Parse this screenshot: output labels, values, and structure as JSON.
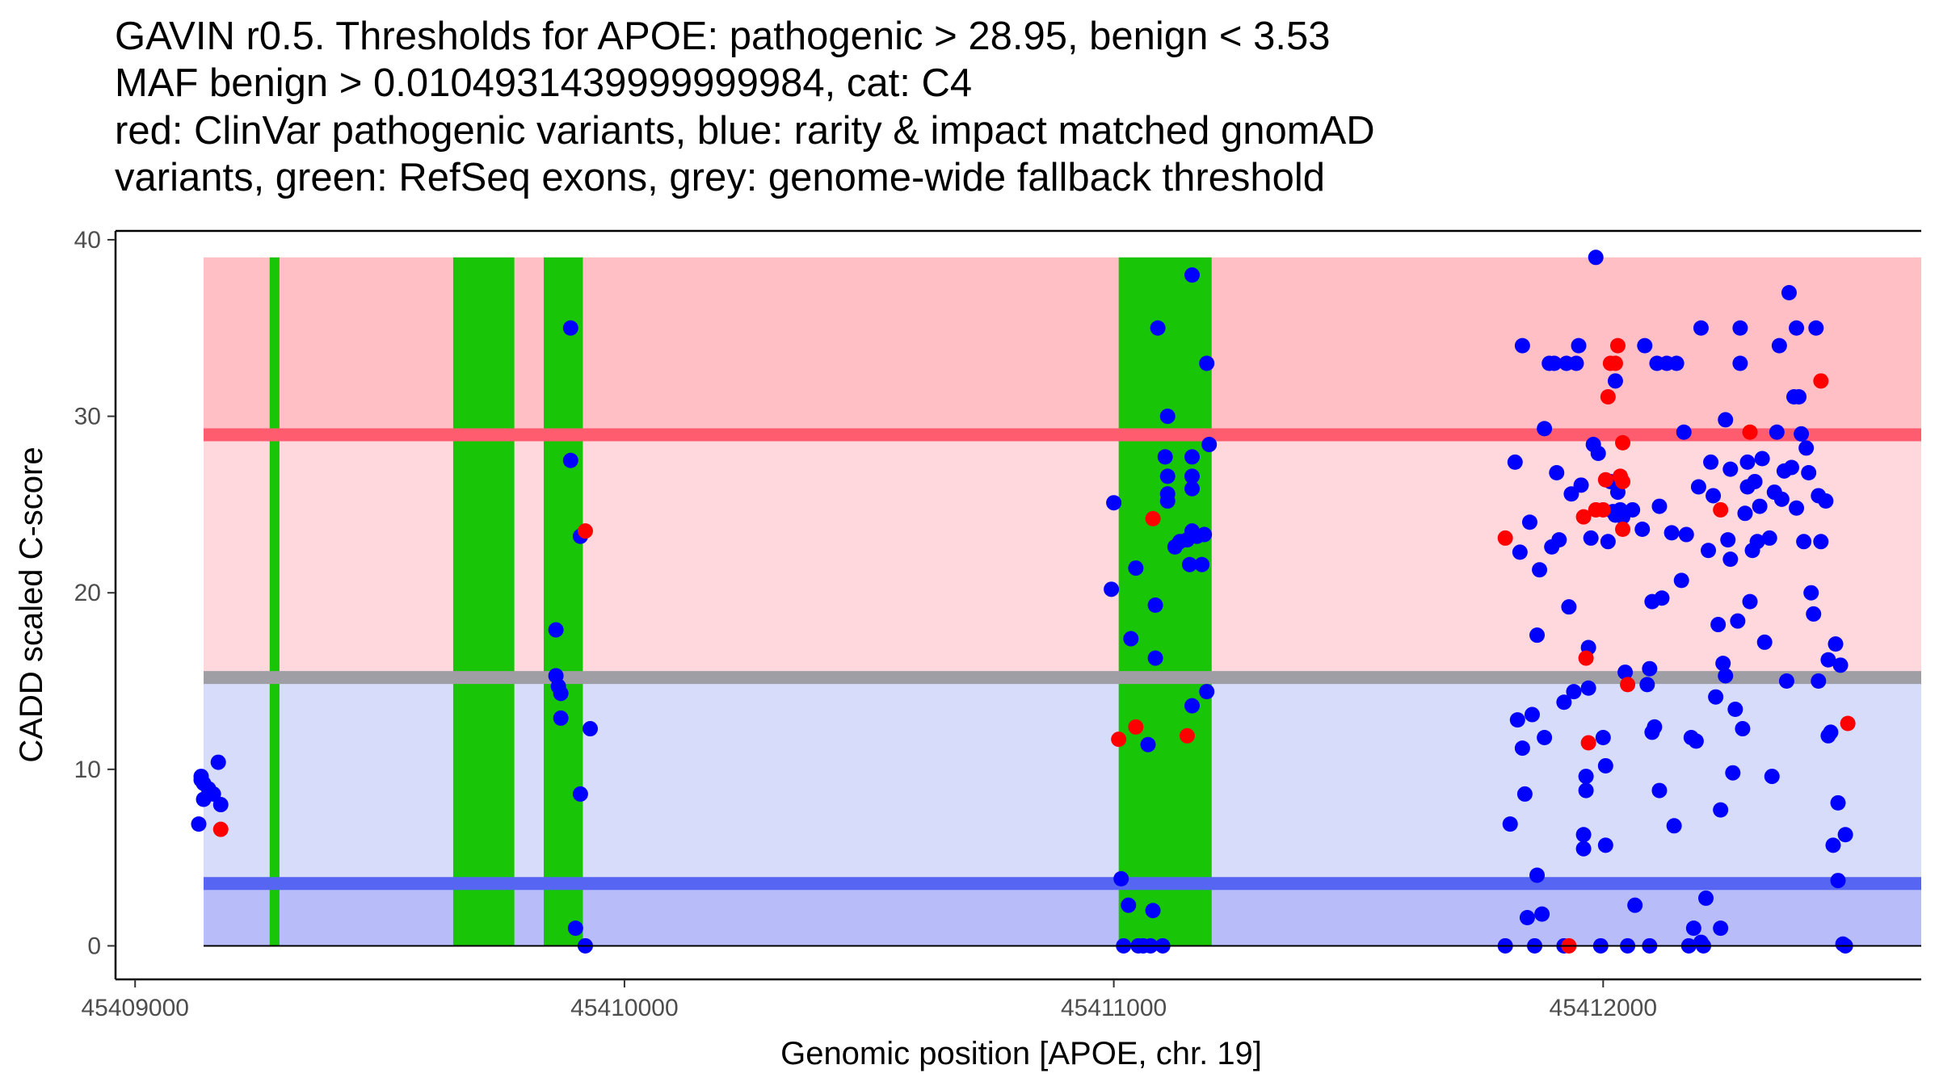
{
  "chart_data": {
    "type": "scatter",
    "title_lines": [
      "GAVIN r0.5. Thresholds for APOE: pathogenic > 28.95, benign < 3.53",
      "MAF benign > 0.0104931439999999984, cat: C4",
      "red: ClinVar pathogenic variants, blue: rarity & impact matched gnomAD",
      "variants, green: RefSeq exons, grey: genome-wide fallback threshold"
    ],
    "xlabel": "Genomic position [APOE, chr. 19]",
    "ylabel": "CADD scaled C-score",
    "xlim": [
      45408960,
      45412650
    ],
    "ylim": [
      -1.9,
      40.5
    ],
    "x_ticks": [
      45409000,
      45410000,
      45411000,
      45412000
    ],
    "x_tick_labels": [
      "45409000",
      "45410000",
      "45411000",
      "45412000"
    ],
    "y_ticks": [
      0,
      10,
      20,
      30,
      40
    ],
    "y_tick_labels": [
      "0",
      "10",
      "20",
      "30",
      "40"
    ],
    "colors": {
      "pathogenic_region": "#ffbfc5",
      "vus_region": "#ffd8dd",
      "benign_region": "#d8dcfb",
      "strong_benign_region": "#b8bdfa",
      "pathogenic_line": "#ff5c6f",
      "benign_line": "#5666f2",
      "fallback_line": "#9e9ea4",
      "exon": "#19c507",
      "pathogenic_point": "#ff0000",
      "gnomad_point": "#0000ff"
    },
    "regions": [
      {
        "name": "pathogenic",
        "y_from": 28.95,
        "y_to": 39
      },
      {
        "name": "vus",
        "y_from": 15.2,
        "y_to": 28.95
      },
      {
        "name": "benign",
        "y_from": 3.53,
        "y_to": 15.2
      },
      {
        "name": "strong-benign",
        "y_from": 0,
        "y_to": 3.53
      }
    ],
    "thresholds": {
      "pathogenic": 28.95,
      "benign": 3.53,
      "fallback": 15.2
    },
    "exons": [
      {
        "start": 45409275,
        "end": 45409295
      },
      {
        "start": 45409650,
        "end": 45409775
      },
      {
        "start": 45409835,
        "end": 45409915
      },
      {
        "start": 45411010,
        "end": 45411200
      }
    ],
    "exon_y_range": [
      0,
      39
    ],
    "clinvar_pathogenic": [
      {
        "x": 45409175,
        "y": 6.6
      },
      {
        "x": 45409920,
        "y": 23.5
      },
      {
        "x": 45411010,
        "y": 11.7
      },
      {
        "x": 45411045,
        "y": 12.4
      },
      {
        "x": 45411080,
        "y": 24.2
      },
      {
        "x": 45411150,
        "y": 11.9
      },
      {
        "x": 45411800,
        "y": 23.1
      },
      {
        "x": 45411930,
        "y": 0.0
      },
      {
        "x": 45411960,
        "y": 24.3
      },
      {
        "x": 45411965,
        "y": 16.3
      },
      {
        "x": 45411970,
        "y": 11.5
      },
      {
        "x": 45411985,
        "y": 24.7
      },
      {
        "x": 45412000,
        "y": 24.7
      },
      {
        "x": 45412005,
        "y": 26.4
      },
      {
        "x": 45412010,
        "y": 31.1
      },
      {
        "x": 45412015,
        "y": 33.0
      },
      {
        "x": 45412025,
        "y": 33.0
      },
      {
        "x": 45412030,
        "y": 34.0
      },
      {
        "x": 45412035,
        "y": 26.6
      },
      {
        "x": 45412040,
        "y": 26.3
      },
      {
        "x": 45412040,
        "y": 28.5
      },
      {
        "x": 45412040,
        "y": 23.6
      },
      {
        "x": 45412050,
        "y": 14.8
      },
      {
        "x": 45412240,
        "y": 24.7
      },
      {
        "x": 45412300,
        "y": 29.1
      },
      {
        "x": 45412445,
        "y": 32.0
      },
      {
        "x": 45412500,
        "y": 12.6
      }
    ],
    "gnomad_matched": [
      {
        "x": 45409130,
        "y": 6.9
      },
      {
        "x": 45409135,
        "y": 9.6
      },
      {
        "x": 45409140,
        "y": 9.2
      },
      {
        "x": 45409140,
        "y": 8.3
      },
      {
        "x": 45409150,
        "y": 8.9
      },
      {
        "x": 45409160,
        "y": 8.6
      },
      {
        "x": 45409170,
        "y": 10.4
      },
      {
        "x": 45409175,
        "y": 8.0
      },
      {
        "x": 45409135,
        "y": 9.4
      },
      {
        "x": 45409860,
        "y": 17.9
      },
      {
        "x": 45409860,
        "y": 15.3
      },
      {
        "x": 45409865,
        "y": 14.7
      },
      {
        "x": 45409870,
        "y": 14.3
      },
      {
        "x": 45409870,
        "y": 12.9
      },
      {
        "x": 45409890,
        "y": 35.0
      },
      {
        "x": 45409890,
        "y": 27.5
      },
      {
        "x": 45409900,
        "y": 1.0
      },
      {
        "x": 45409910,
        "y": 23.2
      },
      {
        "x": 45409910,
        "y": 8.6
      },
      {
        "x": 45409920,
        "y": 0.0
      },
      {
        "x": 45409930,
        "y": 12.3
      },
      {
        "x": 45411000,
        "y": 25.1
      },
      {
        "x": 45410995,
        "y": 20.2
      },
      {
        "x": 45411015,
        "y": 3.8
      },
      {
        "x": 45411020,
        "y": 0.0
      },
      {
        "x": 45411030,
        "y": 2.3
      },
      {
        "x": 45411035,
        "y": 17.4
      },
      {
        "x": 45411045,
        "y": 21.4
      },
      {
        "x": 45411050,
        "y": 0.0
      },
      {
        "x": 45411060,
        "y": 0.0
      },
      {
        "x": 45411070,
        "y": 11.4
      },
      {
        "x": 45411075,
        "y": 0.0
      },
      {
        "x": 45411080,
        "y": 2.0
      },
      {
        "x": 45411085,
        "y": 16.3
      },
      {
        "x": 45411085,
        "y": 19.3
      },
      {
        "x": 45411090,
        "y": 35.0
      },
      {
        "x": 45411100,
        "y": 0.0
      },
      {
        "x": 45411105,
        "y": 27.7
      },
      {
        "x": 45411110,
        "y": 30.0
      },
      {
        "x": 45411110,
        "y": 26.6
      },
      {
        "x": 45411110,
        "y": 25.6
      },
      {
        "x": 45411110,
        "y": 25.2
      },
      {
        "x": 45411125,
        "y": 22.6
      },
      {
        "x": 45411135,
        "y": 22.9
      },
      {
        "x": 45411150,
        "y": 23.0
      },
      {
        "x": 45411155,
        "y": 21.6
      },
      {
        "x": 45411160,
        "y": 23.5
      },
      {
        "x": 45411160,
        "y": 38.0
      },
      {
        "x": 45411160,
        "y": 27.7
      },
      {
        "x": 45411160,
        "y": 26.6
      },
      {
        "x": 45411160,
        "y": 25.9
      },
      {
        "x": 45411170,
        "y": 23.2
      },
      {
        "x": 45411180,
        "y": 21.6
      },
      {
        "x": 45411185,
        "y": 23.3
      },
      {
        "x": 45411160,
        "y": 13.6
      },
      {
        "x": 45411190,
        "y": 14.4
      },
      {
        "x": 45411190,
        "y": 33.0
      },
      {
        "x": 45411195,
        "y": 28.4
      },
      {
        "x": 45411800,
        "y": 0.0
      },
      {
        "x": 45411810,
        "y": 6.9
      },
      {
        "x": 45411820,
        "y": 27.4
      },
      {
        "x": 45411825,
        "y": 12.8
      },
      {
        "x": 45411830,
        "y": 22.3
      },
      {
        "x": 45411835,
        "y": 34.0
      },
      {
        "x": 45411835,
        "y": 11.2
      },
      {
        "x": 45411840,
        "y": 8.6
      },
      {
        "x": 45411845,
        "y": 1.6
      },
      {
        "x": 45411850,
        "y": 24.0
      },
      {
        "x": 45411855,
        "y": 13.1
      },
      {
        "x": 45411860,
        "y": 0.0
      },
      {
        "x": 45411865,
        "y": 4.0
      },
      {
        "x": 45411865,
        "y": 17.6
      },
      {
        "x": 45411870,
        "y": 21.3
      },
      {
        "x": 45411875,
        "y": 1.8
      },
      {
        "x": 45411880,
        "y": 11.8
      },
      {
        "x": 45411880,
        "y": 29.3
      },
      {
        "x": 45411890,
        "y": 33.0
      },
      {
        "x": 45411895,
        "y": 22.6
      },
      {
        "x": 45411900,
        "y": 33.0
      },
      {
        "x": 45411905,
        "y": 26.8
      },
      {
        "x": 45411910,
        "y": 23.0
      },
      {
        "x": 45411920,
        "y": 13.8
      },
      {
        "x": 45411920,
        "y": 0.0
      },
      {
        "x": 45411925,
        "y": 33.0
      },
      {
        "x": 45411930,
        "y": 19.2
      },
      {
        "x": 45411935,
        "y": 25.6
      },
      {
        "x": 45411940,
        "y": 14.4
      },
      {
        "x": 45411945,
        "y": 33.0
      },
      {
        "x": 45411950,
        "y": 34.0
      },
      {
        "x": 45411955,
        "y": 26.1
      },
      {
        "x": 45411960,
        "y": 5.5
      },
      {
        "x": 45411960,
        "y": 6.3
      },
      {
        "x": 45411965,
        "y": 9.6
      },
      {
        "x": 45411965,
        "y": 8.8
      },
      {
        "x": 45411970,
        "y": 14.6
      },
      {
        "x": 45411970,
        "y": 16.9
      },
      {
        "x": 45411975,
        "y": 23.1
      },
      {
        "x": 45411980,
        "y": 28.4
      },
      {
        "x": 45411985,
        "y": 39.0
      },
      {
        "x": 45411990,
        "y": 27.9
      },
      {
        "x": 45411995,
        "y": 0.0
      },
      {
        "x": 45412000,
        "y": 11.8
      },
      {
        "x": 45412005,
        "y": 10.2
      },
      {
        "x": 45412005,
        "y": 5.7
      },
      {
        "x": 45412010,
        "y": 22.9
      },
      {
        "x": 45412015,
        "y": 26.3
      },
      {
        "x": 45412020,
        "y": 24.6
      },
      {
        "x": 45412025,
        "y": 32.0
      },
      {
        "x": 45412025,
        "y": 24.4
      },
      {
        "x": 45412030,
        "y": 25.7
      },
      {
        "x": 45412035,
        "y": 24.7
      },
      {
        "x": 45412040,
        "y": 24.3
      },
      {
        "x": 45412045,
        "y": 15.5
      },
      {
        "x": 45412050,
        "y": 0.0
      },
      {
        "x": 45412060,
        "y": 24.7
      },
      {
        "x": 45412065,
        "y": 2.3
      },
      {
        "x": 45412080,
        "y": 23.6
      },
      {
        "x": 45412085,
        "y": 34.0
      },
      {
        "x": 45412090,
        "y": 14.8
      },
      {
        "x": 45412095,
        "y": 15.7
      },
      {
        "x": 45412095,
        "y": 0.0
      },
      {
        "x": 45412100,
        "y": 12.1
      },
      {
        "x": 45412100,
        "y": 19.5
      },
      {
        "x": 45412105,
        "y": 12.4
      },
      {
        "x": 45412110,
        "y": 33.0
      },
      {
        "x": 45412115,
        "y": 24.9
      },
      {
        "x": 45412115,
        "y": 8.8
      },
      {
        "x": 45412120,
        "y": 19.7
      },
      {
        "x": 45412130,
        "y": 33.0
      },
      {
        "x": 45412140,
        "y": 23.4
      },
      {
        "x": 45412145,
        "y": 6.8
      },
      {
        "x": 45412150,
        "y": 33.0
      },
      {
        "x": 45412160,
        "y": 20.7
      },
      {
        "x": 45412165,
        "y": 29.1
      },
      {
        "x": 45412170,
        "y": 23.3
      },
      {
        "x": 45412175,
        "y": 0.0
      },
      {
        "x": 45412180,
        "y": 11.8
      },
      {
        "x": 45412185,
        "y": 1.0
      },
      {
        "x": 45412190,
        "y": 11.6
      },
      {
        "x": 45412195,
        "y": 26.0
      },
      {
        "x": 45412200,
        "y": 35.0
      },
      {
        "x": 45412200,
        "y": 0.2
      },
      {
        "x": 45412205,
        "y": 0.0
      },
      {
        "x": 45412210,
        "y": 2.7
      },
      {
        "x": 45412215,
        "y": 22.4
      },
      {
        "x": 45412220,
        "y": 27.4
      },
      {
        "x": 45412225,
        "y": 25.5
      },
      {
        "x": 45412230,
        "y": 14.1
      },
      {
        "x": 45412235,
        "y": 18.2
      },
      {
        "x": 45412240,
        "y": 7.7
      },
      {
        "x": 45412240,
        "y": 1.0
      },
      {
        "x": 45412245,
        "y": 16.0
      },
      {
        "x": 45412250,
        "y": 15.3
      },
      {
        "x": 45412250,
        "y": 29.8
      },
      {
        "x": 45412255,
        "y": 23.0
      },
      {
        "x": 45412260,
        "y": 21.9
      },
      {
        "x": 45412260,
        "y": 27.0
      },
      {
        "x": 45412265,
        "y": 9.8
      },
      {
        "x": 45412270,
        "y": 13.4
      },
      {
        "x": 45412275,
        "y": 18.4
      },
      {
        "x": 45412280,
        "y": 35.0
      },
      {
        "x": 45412280,
        "y": 33.0
      },
      {
        "x": 45412285,
        "y": 12.3
      },
      {
        "x": 45412290,
        "y": 24.5
      },
      {
        "x": 45412295,
        "y": 27.4
      },
      {
        "x": 45412295,
        "y": 26.0
      },
      {
        "x": 45412300,
        "y": 19.5
      },
      {
        "x": 45412305,
        "y": 22.4
      },
      {
        "x": 45412310,
        "y": 26.3
      },
      {
        "x": 45412315,
        "y": 22.9
      },
      {
        "x": 45412320,
        "y": 24.9
      },
      {
        "x": 45412325,
        "y": 27.6
      },
      {
        "x": 45412330,
        "y": 17.2
      },
      {
        "x": 45412340,
        "y": 23.1
      },
      {
        "x": 45412345,
        "y": 9.6
      },
      {
        "x": 45412350,
        "y": 25.7
      },
      {
        "x": 45412355,
        "y": 29.1
      },
      {
        "x": 45412360,
        "y": 34.0
      },
      {
        "x": 45412365,
        "y": 25.3
      },
      {
        "x": 45412370,
        "y": 26.9
      },
      {
        "x": 45412375,
        "y": 15.0
      },
      {
        "x": 45412380,
        "y": 37.0
      },
      {
        "x": 45412385,
        "y": 27.1
      },
      {
        "x": 45412390,
        "y": 31.1
      },
      {
        "x": 45412395,
        "y": 35.0
      },
      {
        "x": 45412395,
        "y": 24.8
      },
      {
        "x": 45412400,
        "y": 31.1
      },
      {
        "x": 45412405,
        "y": 29.0
      },
      {
        "x": 45412410,
        "y": 22.9
      },
      {
        "x": 45412415,
        "y": 28.2
      },
      {
        "x": 45412420,
        "y": 26.8
      },
      {
        "x": 45412425,
        "y": 20.0
      },
      {
        "x": 45412430,
        "y": 18.8
      },
      {
        "x": 45412435,
        "y": 35.0
      },
      {
        "x": 45412440,
        "y": 15.0
      },
      {
        "x": 45412440,
        "y": 25.5
      },
      {
        "x": 45412445,
        "y": 22.9
      },
      {
        "x": 45412455,
        "y": 25.2
      },
      {
        "x": 45412460,
        "y": 16.2
      },
      {
        "x": 45412460,
        "y": 11.9
      },
      {
        "x": 45412465,
        "y": 12.1
      },
      {
        "x": 45412470,
        "y": 5.7
      },
      {
        "x": 45412475,
        "y": 17.1
      },
      {
        "x": 45412480,
        "y": 3.7
      },
      {
        "x": 45412480,
        "y": 8.1
      },
      {
        "x": 45412485,
        "y": 15.9
      },
      {
        "x": 45412490,
        "y": 0.1
      },
      {
        "x": 45412495,
        "y": 0.0
      },
      {
        "x": 45412495,
        "y": 6.3
      }
    ]
  }
}
